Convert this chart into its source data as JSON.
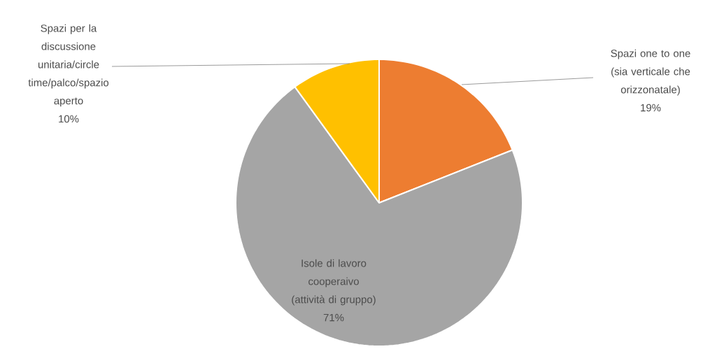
{
  "chart_data": {
    "type": "pie",
    "categories": [
      "Spazi one to one (sia verticale che orizzonatale)",
      "Isole di lavoro cooperaivo (attività di gruppo)",
      "Spazi per la discussione unitaria/circle time/palco/spazio aperto"
    ],
    "values": [
      19,
      71,
      10
    ],
    "colors": [
      "#ed7d31",
      "#a5a5a5",
      "#ffc000"
    ],
    "value_labels": [
      "19%",
      "71%",
      "10%"
    ]
  }
}
